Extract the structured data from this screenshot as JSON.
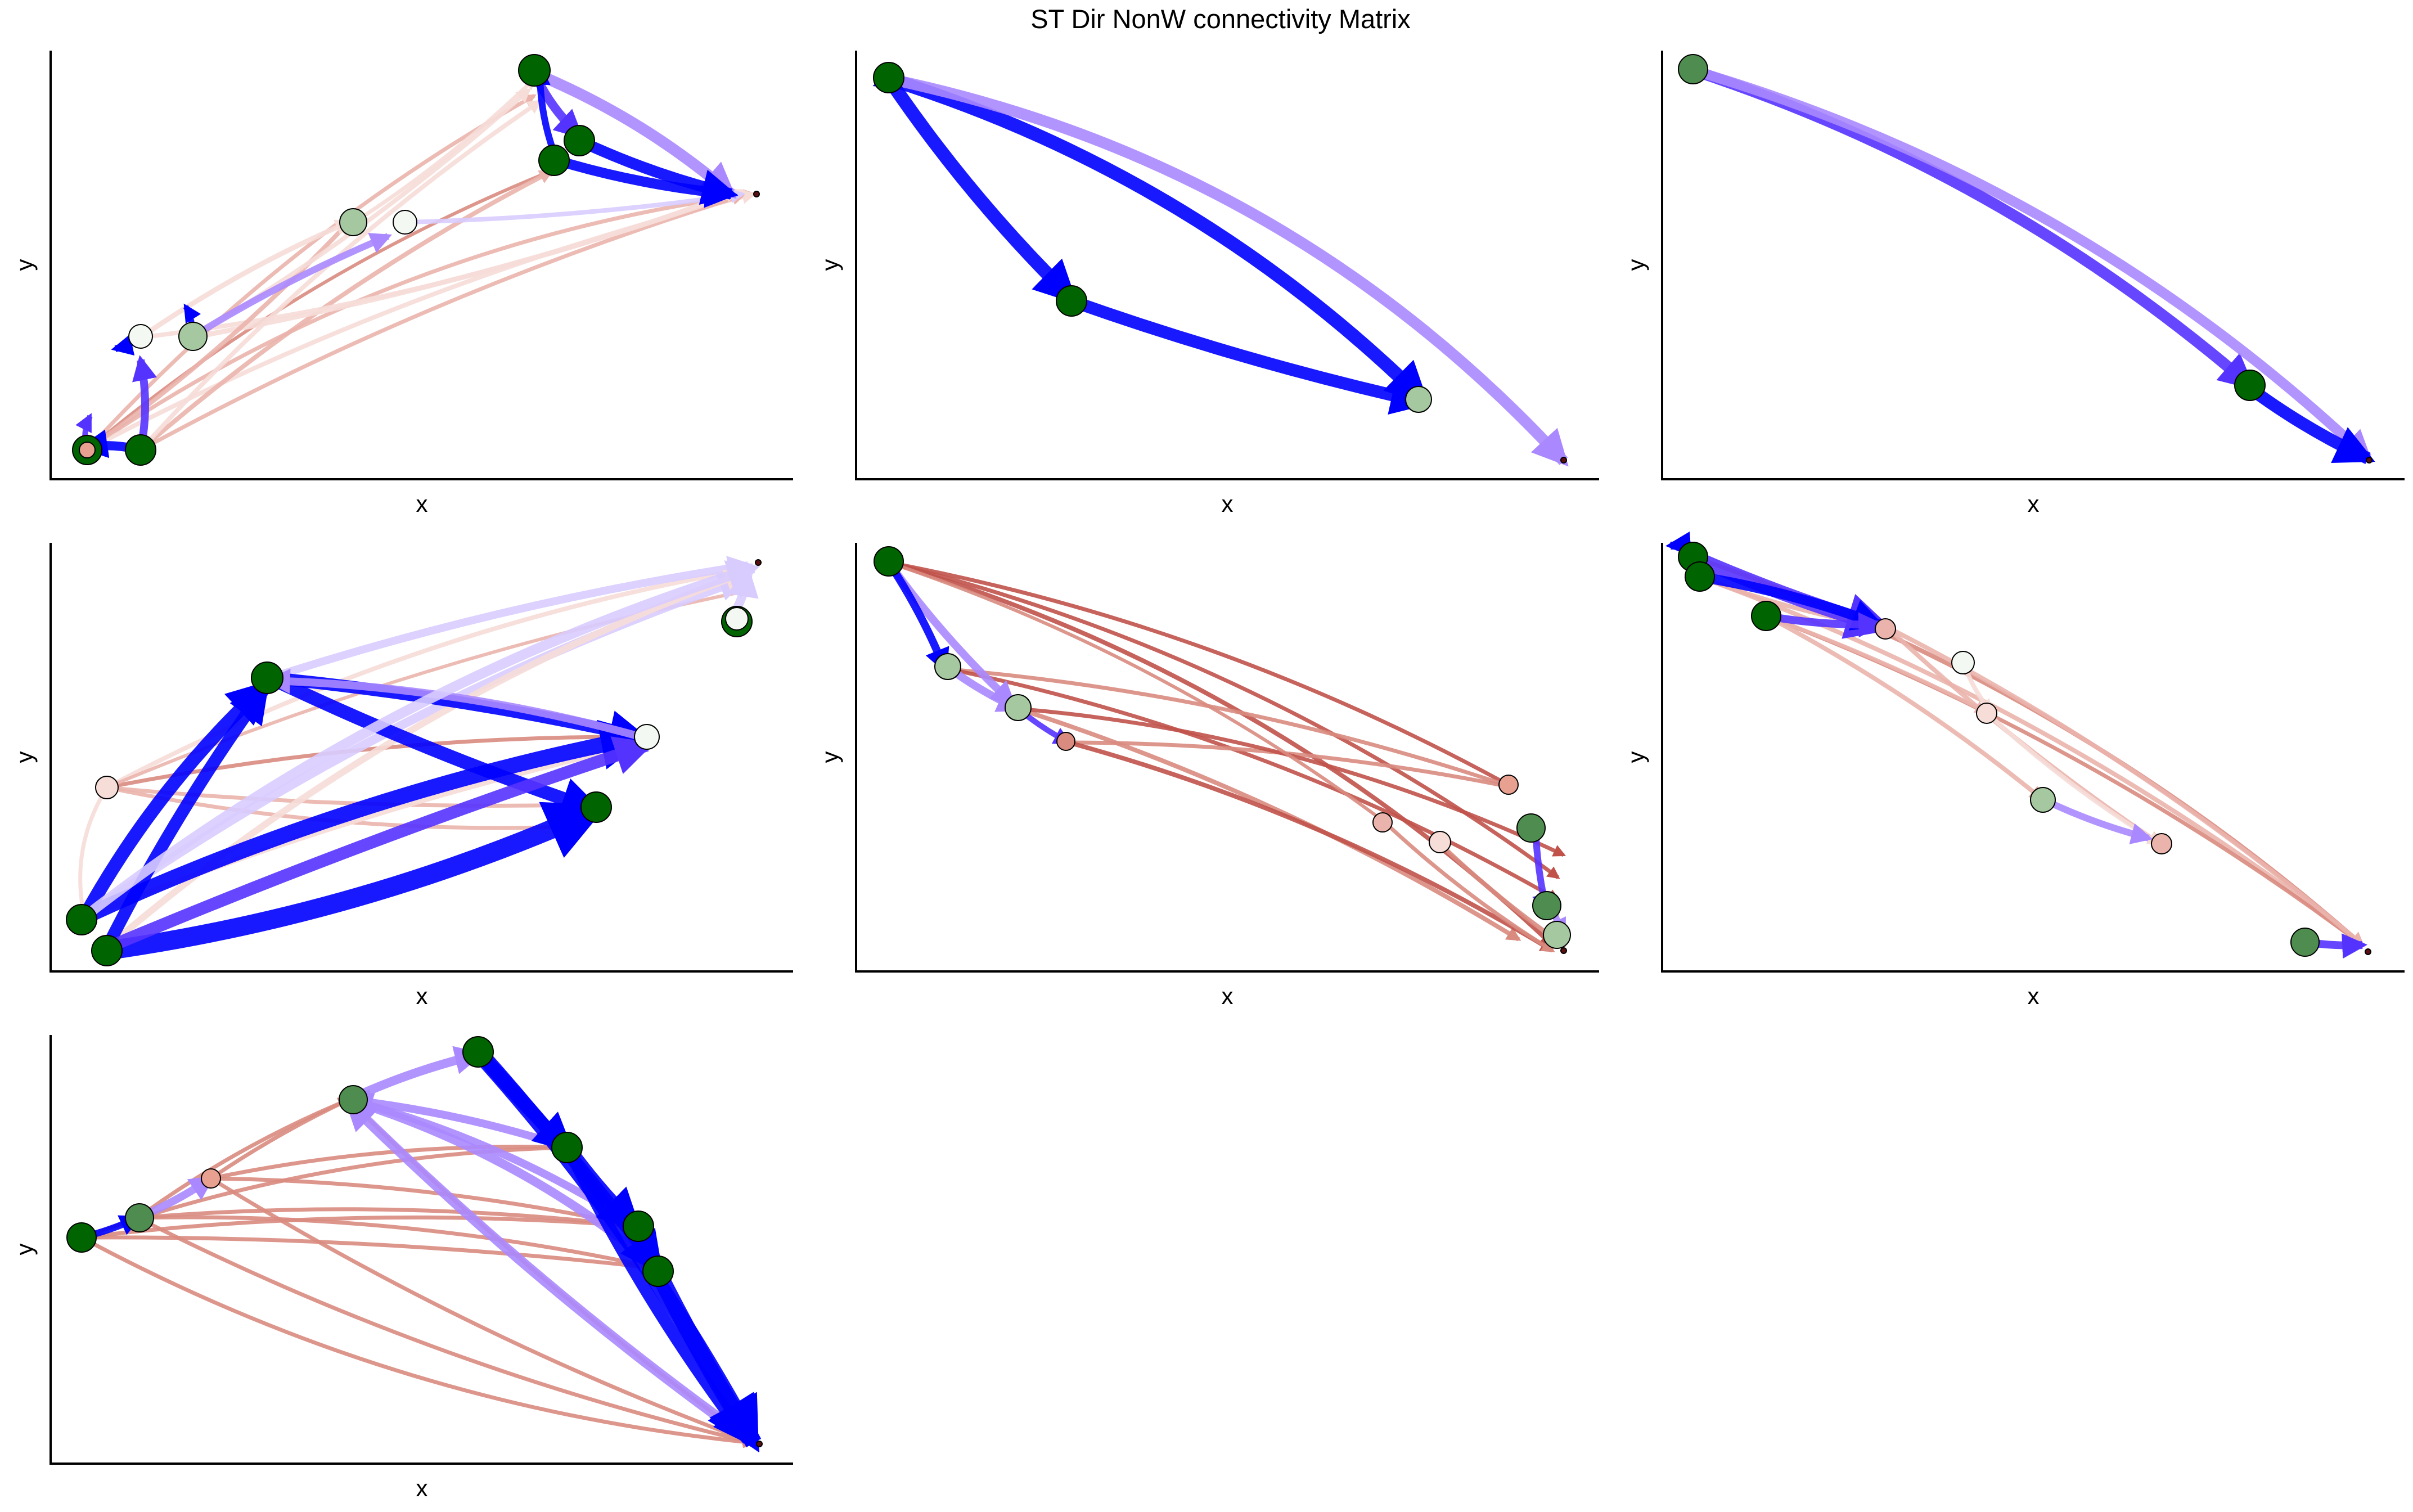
{
  "figure": {
    "title": "ST Dir NonW connectivity Matrix"
  },
  "colors": {
    "strong_positive": "#0000ff",
    "medium_positive": "#5533ff",
    "light_positive": "#aa88ff",
    "pale_positive": "#d8ccff",
    "strong_negative": "#c0524a",
    "medium_negative": "#d98b80",
    "light_negative": "#eab4ac",
    "pale_negative": "#f6ddd8",
    "node_dark": "#006400",
    "node_medium": "#4f8c4f",
    "node_light": "#a6c8a0",
    "node_white": "#f4f8f2",
    "node_salmon": "#e8a090"
  },
  "panels": [
    {
      "id": "panel-1",
      "xlabel": "x",
      "ylabel": "y"
    },
    {
      "id": "panel-2",
      "xlabel": "x",
      "ylabel": "y"
    },
    {
      "id": "panel-3",
      "xlabel": "x",
      "ylabel": "y"
    },
    {
      "id": "panel-4",
      "xlabel": "x",
      "ylabel": "y"
    },
    {
      "id": "panel-5",
      "xlabel": "x",
      "ylabel": "y"
    },
    {
      "id": "panel-6",
      "xlabel": "x",
      "ylabel": "y"
    },
    {
      "id": "panel-7",
      "xlabel": "x",
      "ylabel": "y"
    }
  ]
}
